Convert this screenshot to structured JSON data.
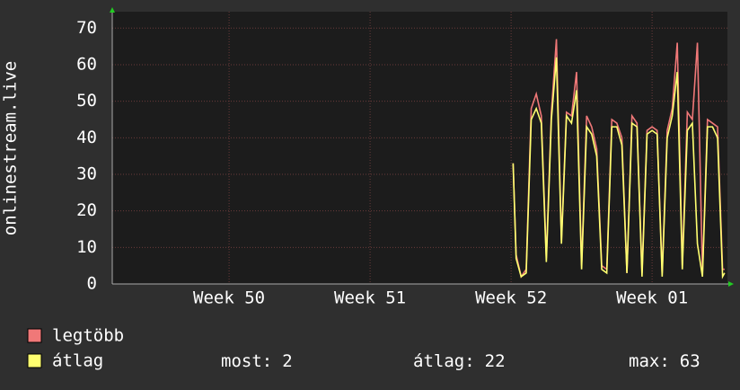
{
  "chart_data": {
    "type": "line",
    "y_label": "onlinestream.live",
    "ylim": [
      0,
      74.5
    ],
    "yticks": [
      0,
      10,
      20,
      30,
      40,
      50,
      60,
      70
    ],
    "xlim": [
      -5.8,
      24.74
    ],
    "xticks": [
      {
        "value": 0,
        "label": "Week 50"
      },
      {
        "value": 7,
        "label": "Week 51"
      },
      {
        "value": 14,
        "label": "Week 52"
      },
      {
        "value": 21,
        "label": "Week 01"
      }
    ],
    "grid": true,
    "x": [
      14.1,
      14.25,
      14.5,
      14.75,
      15.0,
      15.25,
      15.5,
      15.75,
      16.0,
      16.25,
      16.5,
      16.75,
      17.0,
      17.25,
      17.5,
      17.75,
      18.0,
      18.25,
      18.5,
      18.75,
      19.0,
      19.25,
      19.5,
      19.75,
      20.0,
      20.25,
      20.5,
      20.75,
      21.0,
      21.25,
      21.5,
      21.75,
      22.0,
      22.25,
      22.5,
      22.75,
      23.0,
      23.25,
      23.5,
      23.75,
      24.0,
      24.25,
      24.5,
      24.6
    ],
    "series": [
      {
        "name": "legtöbb",
        "color": "#f07878",
        "values": [
          33,
          8,
          2,
          4,
          48,
          52,
          46,
          7,
          47,
          67,
          12,
          47,
          46,
          58,
          5,
          46,
          43,
          37,
          5,
          4,
          45,
          44,
          40,
          3,
          46,
          44,
          3,
          42,
          43,
          42,
          3,
          42,
          48,
          66,
          5,
          47,
          45,
          66,
          3,
          45,
          44,
          43,
          4,
          4
        ]
      },
      {
        "name": "átlag",
        "color": "#ffff70",
        "values": [
          33,
          7,
          2,
          3,
          45,
          48,
          44,
          6,
          45,
          62,
          11,
          46,
          44,
          53,
          4,
          43,
          41,
          35,
          4,
          3,
          43,
          43,
          38,
          3,
          44,
          43,
          2,
          41,
          42,
          41,
          2,
          40,
          46,
          58,
          4,
          42,
          44,
          11,
          2,
          43,
          43,
          40,
          2,
          3
        ]
      }
    ],
    "stats": [
      {
        "label": "most:",
        "value": 2
      },
      {
        "label": "átlag:",
        "value": 22
      },
      {
        "label": "max:",
        "value": 63
      }
    ]
  }
}
